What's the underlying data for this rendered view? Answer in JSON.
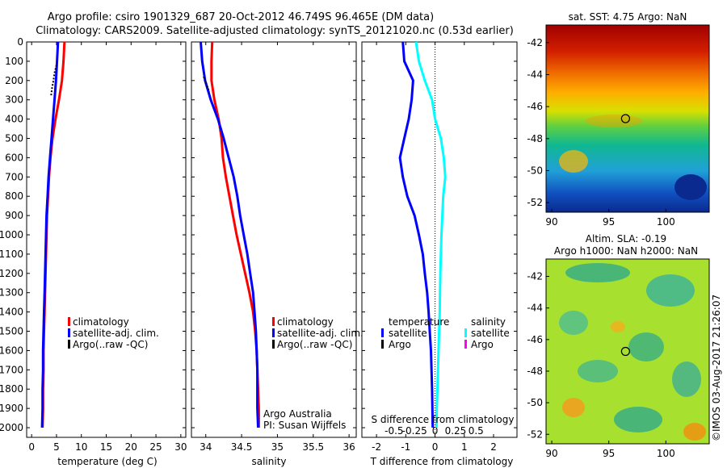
{
  "header": {
    "title_line1": "Argo profile: csiro 1901329_687 20-Oct-2012 46.749S 96.465E (DM data)",
    "title_line2": "Climatology: CARS2009. Satellite-adjusted climatology: synTS_20121020.nc (0.53d earlier)"
  },
  "side_label": "©IMOS 03-Aug-2017 21:26:07",
  "colors": {
    "climatology": "#ff0000",
    "satellite": "#0000ff",
    "argo": "#000000",
    "salinity_satellite": "#00ffff",
    "salinity_argo": "#ff00ff"
  },
  "chart_data": [
    {
      "type": "line",
      "panel": "temperature",
      "xlabel": "temperature (deg C)",
      "xlim": [
        -1,
        31
      ],
      "xticks": [
        0,
        5,
        10,
        15,
        20,
        25,
        30
      ],
      "ylim": [
        2050,
        0
      ],
      "yticks": [
        0,
        100,
        200,
        300,
        400,
        500,
        600,
        700,
        800,
        900,
        1000,
        1100,
        1200,
        1300,
        1400,
        1500,
        1600,
        1700,
        1800,
        1900,
        2000
      ],
      "legend": [
        "climatology",
        "satellite-adj. clim.",
        "Argo(..raw -QC)"
      ],
      "series": [
        {
          "name": "climatology",
          "x": [
            6.6,
            6.4,
            6.1,
            5.5,
            4.8,
            4.2,
            3.8,
            3.5,
            3.3,
            3.1,
            3.0,
            2.9,
            2.8,
            2.7,
            2.6,
            2.5,
            2.4,
            2.4,
            2.3,
            2.3,
            2.2
          ],
          "y": [
            0,
            100,
            200,
            300,
            400,
            500,
            600,
            700,
            800,
            900,
            1000,
            1100,
            1200,
            1300,
            1400,
            1500,
            1600,
            1700,
            1800,
            1900,
            2000
          ]
        },
        {
          "name": "satellite-adj. clim.",
          "x": [
            5.3,
            5.1,
            4.9,
            4.6,
            4.3,
            4.0,
            3.7,
            3.4,
            3.2,
            3.0,
            2.9,
            2.8,
            2.7,
            2.6,
            2.5,
            2.4,
            2.3,
            2.3,
            2.2,
            2.2,
            2.1
          ],
          "y": [
            0,
            100,
            200,
            300,
            400,
            500,
            600,
            700,
            800,
            900,
            1000,
            1100,
            1200,
            1300,
            1400,
            1500,
            1600,
            1700,
            1800,
            1900,
            2000
          ]
        },
        {
          "name": "Argo(..raw -QC)",
          "x": [
            5.0,
            4.6,
            4.4,
            4.1,
            3.9
          ],
          "y": [
            120,
            160,
            200,
            240,
            280
          ]
        }
      ]
    },
    {
      "type": "line",
      "panel": "salinity",
      "xlabel": "salinity",
      "xlim": [
        33.8,
        36.1
      ],
      "xticks": [
        34,
        34.5,
        35,
        35.5,
        36
      ],
      "ylim": [
        2050,
        0
      ],
      "legend": [
        "climatology",
        "satellite-adj. clim.",
        "Argo(..raw -QC)"
      ],
      "annotation": [
        "Argo Australia",
        "PI: Susan Wijffels"
      ],
      "series": [
        {
          "name": "climatology",
          "x": [
            34.09,
            34.08,
            34.08,
            34.12,
            34.18,
            34.22,
            34.24,
            34.28,
            34.33,
            34.38,
            34.43,
            34.49,
            34.55,
            34.61,
            34.66,
            34.69,
            34.71,
            34.72,
            34.73,
            34.74,
            34.74
          ],
          "y": [
            0,
            100,
            200,
            300,
            400,
            500,
            600,
            700,
            800,
            900,
            1000,
            1100,
            1200,
            1300,
            1400,
            1500,
            1600,
            1700,
            1800,
            1900,
            2000
          ]
        },
        {
          "name": "satellite-adj. clim.",
          "x": [
            33.93,
            33.95,
            33.99,
            34.07,
            34.17,
            34.25,
            34.32,
            34.39,
            34.44,
            34.48,
            34.53,
            34.58,
            34.62,
            34.66,
            34.68,
            34.7,
            34.71,
            34.72,
            34.72,
            34.72,
            34.73
          ],
          "y": [
            0,
            100,
            200,
            300,
            400,
            500,
            600,
            700,
            800,
            900,
            1000,
            1100,
            1200,
            1300,
            1400,
            1500,
            1600,
            1700,
            1800,
            1900,
            2000
          ]
        },
        {
          "name": "Argo(..raw -QC)",
          "x": [
            33.97,
            34.01,
            34.05
          ],
          "y": [
            180,
            220,
            260
          ]
        }
      ]
    },
    {
      "type": "line",
      "panel": "difference",
      "xlabel": "T difference from climatology",
      "top_axis_label": "S difference from climatology",
      "xlim": [
        -2.5,
        2.8
      ],
      "xticks": [
        -2,
        -1,
        0,
        1,
        2
      ],
      "top_tick_labels": [
        "-0.5",
        "-0.25",
        "0",
        "0.25",
        "0.5"
      ],
      "ylim": [
        2050,
        0
      ],
      "legend_headers": [
        "temperature",
        "salinity"
      ],
      "legend": [
        "satellite",
        "Argo",
        "satellite",
        "Argo"
      ],
      "series": [
        {
          "name": "temperature satellite",
          "x": [
            -1.1,
            -1.05,
            -0.75,
            -0.8,
            -0.9,
            -1.05,
            -1.2,
            -1.1,
            -0.95,
            -0.7,
            -0.55,
            -0.42,
            -0.35,
            -0.27,
            -0.22,
            -0.18,
            -0.14,
            -0.12,
            -0.1,
            -0.09,
            -0.08
          ],
          "y": [
            0,
            100,
            200,
            300,
            400,
            500,
            600,
            700,
            800,
            900,
            1000,
            1100,
            1200,
            1300,
            1400,
            1500,
            1600,
            1700,
            1800,
            1900,
            2000
          ]
        },
        {
          "name": "salinity satellite",
          "x": [
            -0.65,
            -0.55,
            -0.35,
            -0.1,
            0,
            0.2,
            0.3,
            0.35,
            0.28,
            0.25,
            0.22,
            0.2,
            0.18,
            0.17,
            0.16,
            0.14,
            0.12,
            0.1,
            0.08,
            0.06,
            0.05
          ],
          "y": [
            0,
            100,
            200,
            300,
            400,
            500,
            600,
            700,
            800,
            900,
            1000,
            1100,
            1200,
            1300,
            1400,
            1500,
            1600,
            1700,
            1800,
            1900,
            2000
          ]
        }
      ]
    },
    {
      "type": "heatmap",
      "panel": "sst-map",
      "title": "sat. SST: 4.75 Argo: NaN",
      "xlim": [
        89.5,
        103.8
      ],
      "ylim": [
        -52.6,
        -40.9
      ],
      "xticks": [
        90,
        95,
        100
      ],
      "yticks": [
        -42,
        -44,
        -46,
        -48,
        -50,
        -52
      ],
      "marker": {
        "lon": 96.465,
        "lat": -46.749
      }
    },
    {
      "type": "heatmap",
      "panel": "sla-map",
      "title_line1": "Altim. SLA: -0.19",
      "title_line2": "Argo h1000: NaN h2000: NaN",
      "xlim": [
        89.5,
        103.8
      ],
      "ylim": [
        -52.6,
        -40.9
      ],
      "xticks": [
        90,
        95,
        100
      ],
      "yticks": [
        -42,
        -44,
        -46,
        -48,
        -50,
        -52
      ],
      "marker": {
        "lon": 96.465,
        "lat": -46.749
      }
    }
  ]
}
